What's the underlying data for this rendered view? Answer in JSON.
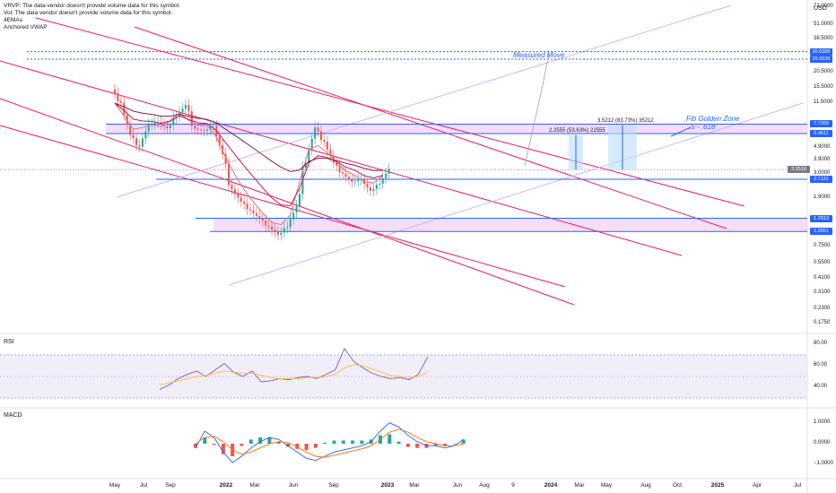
{
  "legend": {
    "vrvp": "VRVP: The data vendor doesn't provide volume data for this symbol.",
    "vol": "Vol: The data vendor doesn't provide volume data for this symbol.",
    "ema": "4EMAs",
    "vwap": "Anchored VWAP"
  },
  "currency": "USD",
  "panes": {
    "rsi_label": "RSI",
    "macd_label": "MACD"
  },
  "annotations": {
    "measured_move": "Measured Move",
    "fib_zone_title": "Fib Golden Zone",
    "fib_zone_range": ".5 - .618",
    "range1": "2.2555 (53.63%) 22555",
    "range2": "3.5212 (83.73%) 35212",
    "current_price_label": "3.2518"
  },
  "colors": {
    "candle_up": "#26a69a",
    "candle_down": "#ef5350",
    "channel": "#e91e63",
    "level_line": "#2962ff",
    "zone_fill": "#f3c6f0",
    "rsi_line": "#7e57c2",
    "rsi_ma": "#fbc02d",
    "macd_line": "#2962ff",
    "signal_line": "#ff6d00"
  },
  "price_axis": [
    {
      "label": "71.0000",
      "value": 71
    },
    {
      "label": "51.0000",
      "value": 51
    },
    {
      "label": "38.5000",
      "value": 38.5
    },
    {
      "label": "20.5000",
      "value": 20.5
    },
    {
      "label": "15.5000",
      "value": 15.5
    },
    {
      "label": "11.5000",
      "value": 11.5
    },
    {
      "label": "4.9000",
      "value": 4.9
    },
    {
      "label": "3.9000",
      "value": 3.9
    },
    {
      "label": "3.0000",
      "value": 3.0
    },
    {
      "label": "1.9000",
      "value": 1.9
    },
    {
      "label": "1.0000",
      "value": 1.0
    },
    {
      "label": "0.7500",
      "value": 0.75
    },
    {
      "label": "0.5500",
      "value": 0.55
    },
    {
      "label": "0.4100",
      "value": 0.41
    },
    {
      "label": "0.3100",
      "value": 0.31
    },
    {
      "label": "0.2300",
      "value": 0.23
    },
    {
      "label": "0.1750",
      "value": 0.175
    }
  ],
  "price_tags": [
    {
      "label": "30.6388",
      "value": 30.6388
    },
    {
      "label": "26.5530",
      "value": 26.553
    },
    {
      "label": "7.7269",
      "value": 7.7269
    },
    {
      "label": "6.4611",
      "value": 6.4611
    },
    {
      "label": "2.7131",
      "value": 2.7131
    },
    {
      "label": "1.2913",
      "value": 1.2913
    },
    {
      "label": "1.0051",
      "value": 1.0051
    }
  ],
  "rsi_axis": [
    {
      "label": "80.00",
      "value": 80
    },
    {
      "label": "60.00",
      "value": 60
    },
    {
      "label": "40.00",
      "value": 40
    }
  ],
  "macd_axis": [
    {
      "label": "1.0000",
      "value": 1
    },
    {
      "label": "0.0000",
      "value": 0
    },
    {
      "label": "−1.0000",
      "value": -1
    }
  ],
  "time_axis": [
    {
      "label": "May",
      "bold": false
    },
    {
      "label": "Jul",
      "bold": false
    },
    {
      "label": "Sep",
      "bold": false
    },
    {
      "label": "2022",
      "bold": true
    },
    {
      "label": "Mar",
      "bold": false
    },
    {
      "label": "Jun",
      "bold": false
    },
    {
      "label": "Sep",
      "bold": false
    },
    {
      "label": "2023",
      "bold": true
    },
    {
      "label": "Mar",
      "bold": false
    },
    {
      "label": "Jun",
      "bold": false
    },
    {
      "label": "Aug",
      "bold": false
    },
    {
      "label": "9",
      "bold": false
    },
    {
      "label": "2024",
      "bold": true
    },
    {
      "label": "Mar",
      "bold": false
    },
    {
      "label": "May",
      "bold": false
    },
    {
      "label": "Aug",
      "bold": false
    },
    {
      "label": "Oct",
      "bold": false
    },
    {
      "label": "2025",
      "bold": true
    },
    {
      "label": "Apr",
      "bold": false
    },
    {
      "label": "Jul",
      "bold": false
    }
  ],
  "chart_data": {
    "type": "candlestick",
    "scale": "log",
    "ylim": [
      0.15,
      75
    ],
    "x": [
      "2021-05",
      "2021-06",
      "2021-07",
      "2021-08",
      "2021-09",
      "2021-10",
      "2021-11",
      "2021-12",
      "2022-01",
      "2022-02",
      "2022-03",
      "2022-04",
      "2022-05",
      "2022-06",
      "2022-07",
      "2022-08",
      "2022-09",
      "2022-10",
      "2022-11",
      "2022-12",
      "2023-01",
      "2023-02",
      "2023-03",
      "2023-04",
      "2023-05",
      "2023-06",
      "2023-07",
      "2023-08",
      "2023-09",
      "2023-10"
    ],
    "close": [
      11.5,
      6.5,
      5.0,
      7.5,
      8.0,
      7.2,
      9.0,
      11.0,
      7.0,
      6.8,
      7.5,
      4.5,
      2.2,
      1.8,
      1.5,
      1.3,
      1.1,
      0.95,
      1.1,
      1.6,
      3.8,
      7.0,
      5.5,
      3.8,
      3.0,
      2.6,
      2.7,
      2.2,
      2.5,
      3.25
    ],
    "levels": [
      30.6388,
      26.553,
      7.7269,
      6.4611,
      2.7131,
      1.2913,
      1.0051
    ],
    "rsi": {
      "values": [
        38,
        42,
        48,
        52,
        55,
        50,
        56,
        62,
        54,
        50,
        55,
        45,
        46,
        48,
        47,
        49,
        50,
        48,
        52,
        56,
        76,
        64,
        58,
        53,
        50,
        48,
        49,
        47,
        52,
        68
      ],
      "ma": [
        42,
        44,
        46,
        48,
        50,
        51,
        53,
        55,
        54,
        53,
        53,
        51,
        49,
        48,
        48,
        48,
        49,
        49,
        50,
        52,
        58,
        61,
        60,
        57,
        54,
        51,
        50,
        49,
        50,
        54
      ],
      "ylim": [
        25,
        85
      ]
    },
    "macd": {
      "macd": [
        -0.2,
        0.6,
        0.3,
        -0.4,
        -0.9,
        -0.6,
        -0.2,
        0.1,
        0.3,
        0.2,
        -0.1,
        -0.4,
        -0.7,
        -0.8,
        -0.6,
        -0.4,
        -0.3,
        -0.2,
        -0.1,
        0.1,
        0.6,
        1.0,
        0.8,
        0.4,
        0.1,
        -0.1,
        -0.1,
        -0.2,
        -0.1,
        0.2
      ],
      "signal": [
        0.0,
        0.3,
        0.35,
        0.1,
        -0.3,
        -0.5,
        -0.4,
        -0.2,
        0.0,
        0.1,
        0.05,
        -0.15,
        -0.4,
        -0.6,
        -0.65,
        -0.55,
        -0.45,
        -0.35,
        -0.25,
        -0.1,
        0.2,
        0.55,
        0.7,
        0.55,
        0.3,
        0.1,
        0.0,
        -0.1,
        -0.1,
        0.0
      ],
      "ylim": [
        -1.5,
        1.5
      ]
    }
  }
}
